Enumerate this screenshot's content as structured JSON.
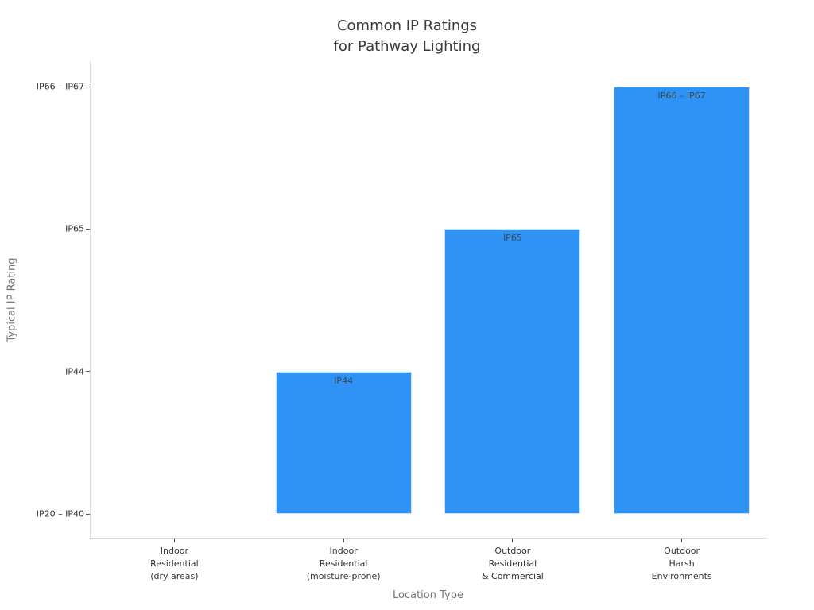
{
  "chart_data": {
    "type": "bar",
    "title": "Common IP Ratings\nfor Pathway Lighting",
    "title_line1": "Common IP Ratings",
    "title_line2": "for Pathway Lighting",
    "xlabel": "Location Type",
    "ylabel": "Typical IP Rating",
    "categories": [
      "Indoor\nResidential\n(dry areas)",
      "Indoor\nResidential\n(moisture-prone)",
      "Outdoor\nResidential\n& Commercial",
      "Outdoor\nHarsh\nEnvironments"
    ],
    "values": [
      "IP20 – IP40",
      "IP44",
      "IP65",
      "IP66 – IP67"
    ],
    "levels": [
      0,
      1,
      2,
      3
    ],
    "bar_labels": [
      "",
      "IP44",
      "IP65",
      "IP66 – IP67"
    ],
    "ytick_labels": [
      "IP20 – IP40",
      "IP44",
      "IP65",
      "IP66 – IP67"
    ],
    "ylim_note": "categorical axis, bars rise from IP20 – IP40 baseline",
    "grid": false,
    "legend": "none",
    "colors": {
      "bar_fill": "#2e93f5",
      "bar_border": "#cbe2fb",
      "bar_label_text": "#3b4754",
      "spine": "#d9d9d9",
      "tick": "#555555",
      "tick_label_text": "#333333",
      "axis_label_text": "#757575",
      "title_text": "#3a3a3a",
      "background": "#ffffff"
    }
  }
}
